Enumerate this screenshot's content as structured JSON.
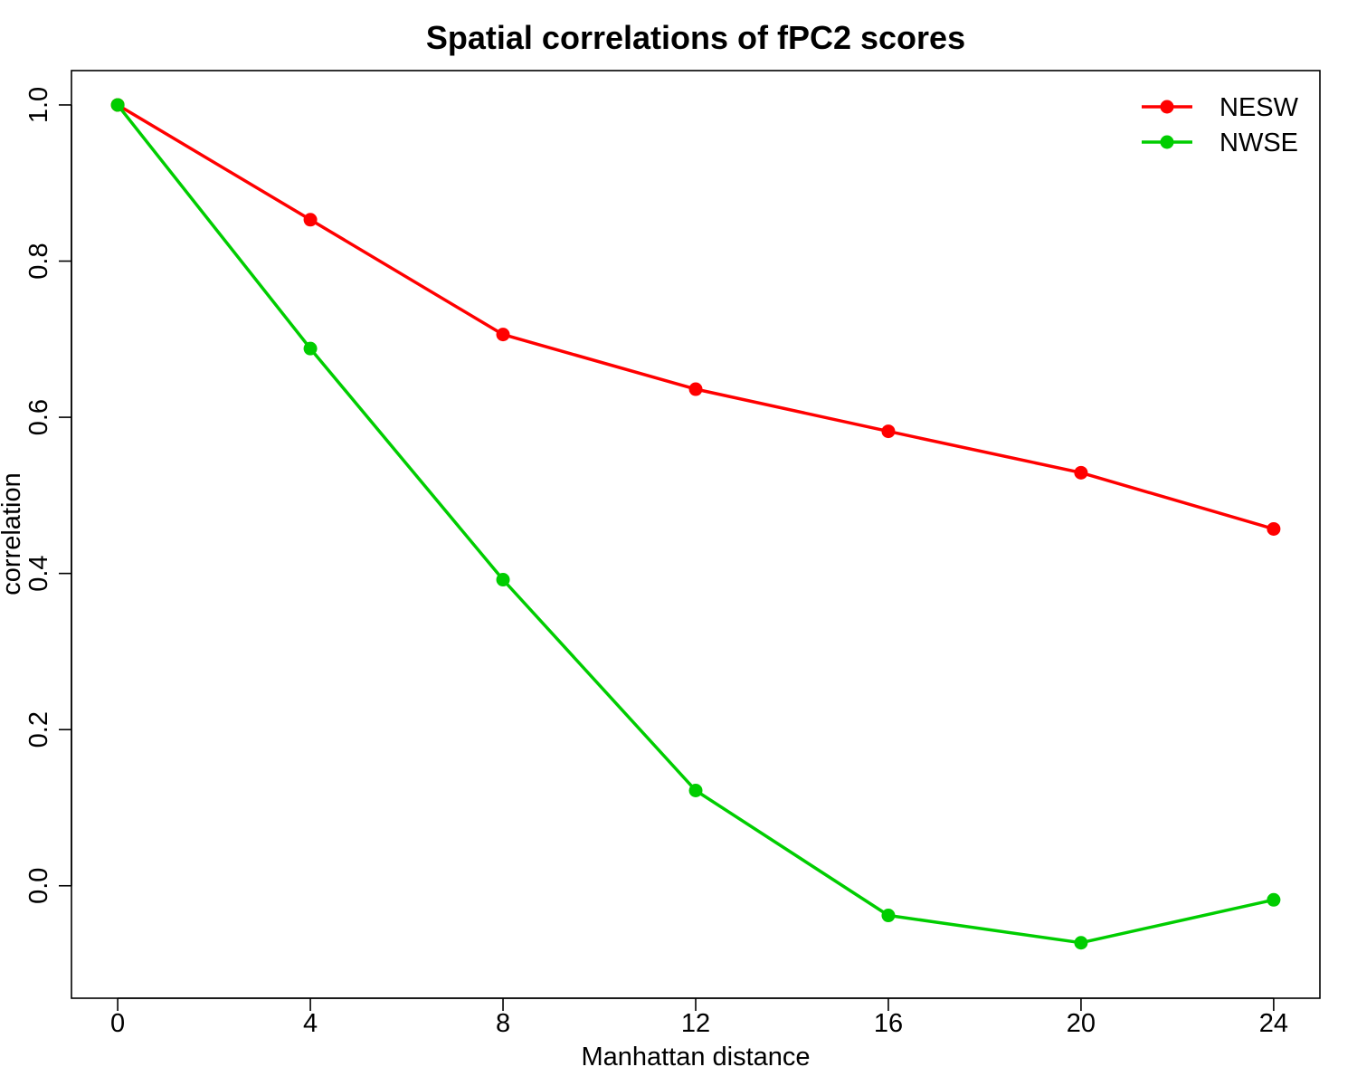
{
  "chart_data": {
    "type": "line",
    "title": "Spatial correlations of fPC2 scores",
    "xlabel": "Manhattan distance",
    "ylabel": "correlation",
    "x": [
      0,
      4,
      8,
      12,
      16,
      20,
      24
    ],
    "xlim": [
      -0.96,
      24.96
    ],
    "ylim": [
      -0.144,
      1.044
    ],
    "x_ticks": [
      0,
      4,
      8,
      12,
      16,
      20,
      24
    ],
    "x_tick_labels": [
      "0",
      "4",
      "8",
      "12",
      "16",
      "20",
      "24"
    ],
    "y_ticks": [
      0.0,
      0.2,
      0.4,
      0.6,
      0.8,
      1.0
    ],
    "y_tick_labels": [
      "0.0",
      "0.2",
      "0.4",
      "0.6",
      "0.8",
      "1.0"
    ],
    "grid": false,
    "legend_position": "top-right",
    "series": [
      {
        "name": "NESW",
        "color": "#FF0000",
        "values": [
          1.0,
          0.853,
          0.706,
          0.636,
          0.582,
          0.529,
          0.457
        ]
      },
      {
        "name": "NWSE",
        "color": "#00CD00",
        "values": [
          1.0,
          0.688,
          0.392,
          0.122,
          -0.038,
          -0.073,
          -0.018
        ]
      }
    ]
  }
}
